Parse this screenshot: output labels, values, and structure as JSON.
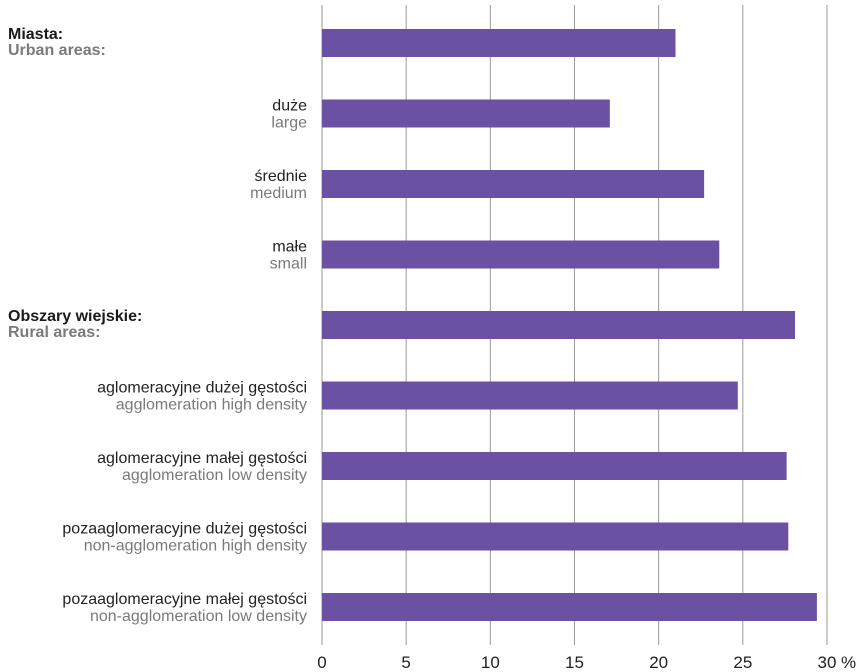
{
  "chart_data": {
    "type": "bar",
    "orientation": "horizontal",
    "unit_label": "%",
    "xlim": [
      0,
      30
    ],
    "x_ticks": [
      0,
      5,
      10,
      15,
      20,
      25,
      30
    ],
    "grid": true,
    "bar_color": "#6a51a3",
    "categories": [
      {
        "pl": "Miasta:",
        "en": "Urban areas:",
        "group": true,
        "value": 21.0
      },
      {
        "pl": "duże",
        "en": "large",
        "group": false,
        "value": 17.1
      },
      {
        "pl": "średnie",
        "en": "medium",
        "group": false,
        "value": 22.7
      },
      {
        "pl": "małe",
        "en": "small",
        "group": false,
        "value": 23.6
      },
      {
        "pl": "Obszary wiejskie:",
        "en": "Rural areas:",
        "group": true,
        "value": 28.1
      },
      {
        "pl": "aglomeracyjne dużej gęstości",
        "en": "agglomeration high density",
        "group": false,
        "value": 24.7
      },
      {
        "pl": "aglomeracyjne małej gęstości",
        "en": "agglomeration low density",
        "group": false,
        "value": 27.6
      },
      {
        "pl": "pozaaglomeracyjne dużej gęstości",
        "en": "non-agglomeration high density",
        "group": false,
        "value": 27.7
      },
      {
        "pl": "pozaaglomeracyjne małej gęstości",
        "en": "non-agglomeration low density",
        "group": false,
        "value": 29.4
      }
    ]
  }
}
